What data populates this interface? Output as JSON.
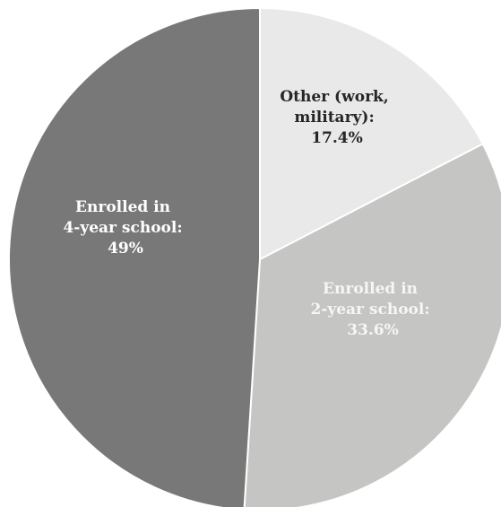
{
  "chart_data": {
    "type": "pie",
    "title": "",
    "slices": [
      {
        "lines": [
          "Other (work,",
          "military):",
          "17.4%"
        ],
        "value": 17.4,
        "color": "#e8e9e8",
        "label_color": "#262626"
      },
      {
        "lines": [
          "Enrolled in",
          "2-year school:",
          "33.6%"
        ],
        "value": 33.6,
        "color": "#c5c5c3",
        "label_color": "#f6f6f6"
      },
      {
        "lines": [
          "Enrolled in",
          "4-year school:",
          "49%"
        ],
        "value": 49,
        "color": "#787878",
        "label_color": "#ffffff"
      }
    ],
    "legend": "none"
  }
}
